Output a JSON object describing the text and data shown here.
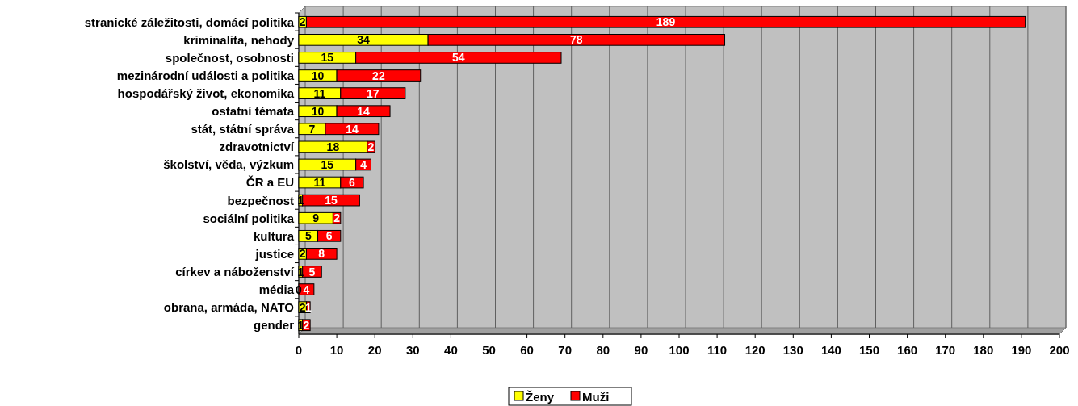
{
  "chart_data": {
    "type": "bar",
    "orientation": "horizontal",
    "stacked": true,
    "data_labels": true,
    "grid": "x",
    "legend": "bottom",
    "categories": [
      "stranické záležitosti, domácí politika",
      "kriminalita, nehody",
      "společnost, osobnosti",
      "mezinárodní události a politika",
      "hospodářský život, ekonomika",
      "ostatní témata",
      "stát, státní správa",
      "zdravotnictví",
      "školství, věda, výzkum",
      "ČR a EU",
      "bezpečnost",
      "sociální politika",
      "kultura",
      "justice",
      "církev a náboženství",
      "média",
      "obrana, armáda, NATO",
      "gender"
    ],
    "series": [
      {
        "name": "Ženy",
        "color": "#ffff00",
        "values": [
          2,
          34,
          15,
          10,
          11,
          10,
          7,
          18,
          15,
          11,
          1,
          9,
          5,
          2,
          1,
          0,
          2,
          1
        ]
      },
      {
        "name": "Muži",
        "color": "#ff0000",
        "values": [
          189,
          78,
          54,
          22,
          17,
          14,
          14,
          2,
          4,
          6,
          15,
          2,
          6,
          8,
          5,
          4,
          1,
          2
        ]
      }
    ],
    "xlim": [
      0,
      200
    ],
    "xticks": [
      0,
      10,
      20,
      30,
      40,
      50,
      60,
      70,
      80,
      90,
      100,
      110,
      120,
      130,
      140,
      150,
      160,
      170,
      180,
      190,
      200
    ]
  }
}
